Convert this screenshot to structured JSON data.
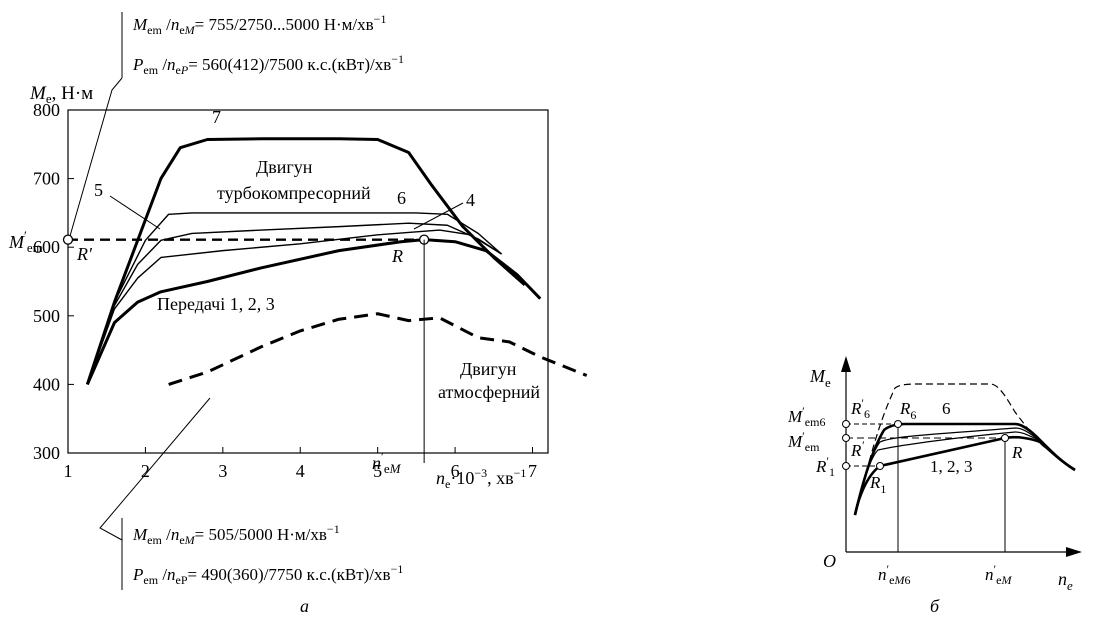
{
  "chart_data": [
    {
      "panel": "а",
      "type": "line",
      "xlim": [
        1,
        7.2
      ],
      "ylim": [
        300,
        800
      ],
      "x_ticks": [
        1,
        2,
        3,
        4,
        5,
        6,
        7
      ],
      "y_ticks": [
        300,
        400,
        500,
        600,
        700,
        800
      ],
      "ylabel": "Me, Н·м",
      "xlabel": "ne·10⁻³, хв⁻¹",
      "mem_label": "M′em",
      "nem_label": "n′eM",
      "grid": false,
      "series": [
        {
          "name": "7",
          "style": "bold",
          "x": [
            1.25,
            1.6,
            2.2,
            2.45,
            2.8,
            3.5,
            4.5,
            5.0,
            5.4,
            5.7,
            6.1,
            6.5,
            6.9
          ],
          "y": [
            400,
            520,
            700,
            745,
            757,
            758,
            758,
            757,
            738,
            690,
            630,
            585,
            545
          ]
        },
        {
          "name": "6",
          "x": [
            1.25,
            1.6,
            2.0,
            2.3,
            2.6,
            3.5,
            4.5,
            5.5,
            5.9,
            6.3,
            6.6
          ],
          "y": [
            400,
            520,
            610,
            648,
            650,
            650,
            650,
            650,
            648,
            620,
            590
          ]
        },
        {
          "name": "5",
          "x": [
            1.25,
            1.6,
            1.9,
            2.2,
            2.6,
            3.5,
            4.5,
            5.4,
            5.9,
            6.3,
            6.6
          ],
          "y": [
            400,
            515,
            575,
            610,
            620,
            625,
            630,
            635,
            632,
            612,
            590
          ]
        },
        {
          "name": "4",
          "x": [
            1.25,
            1.6,
            1.9,
            2.2,
            3.0,
            4.0,
            5.0,
            5.8,
            6.2,
            6.6
          ],
          "y": [
            400,
            510,
            555,
            585,
            595,
            605,
            618,
            625,
            618,
            590
          ]
        },
        {
          "name": "Передачі 1, 2, 3",
          "style": "bold",
          "x": [
            1.25,
            1.6,
            1.9,
            2.2,
            2.8,
            3.5,
            4.5,
            5.3,
            5.6,
            6.0,
            6.4,
            6.8,
            7.1
          ],
          "y": [
            400,
            490,
            520,
            535,
            550,
            570,
            595,
            608,
            611,
            608,
            595,
            560,
            525
          ]
        },
        {
          "name": "Двигун атмосферний",
          "style": "dashed-bold",
          "x": [
            2.3,
            2.8,
            3.5,
            4.0,
            4.5,
            5.0,
            5.4,
            5.8,
            6.3,
            6.7,
            7.1,
            7.7
          ],
          "y": [
            400,
            418,
            455,
            478,
            495,
            503,
            493,
            497,
            468,
            462,
            440,
            413
          ]
        }
      ],
      "annotations": {
        "turbo_label_1": "Двигун",
        "turbo_label_2": "турбокомпресорний",
        "atmo_label_1": "Двигун",
        "atmo_label_2": "атмосферний",
        "gears_label": "Передачі 1, 2, 3",
        "curve7": "7",
        "curve6": "6",
        "curve5": "5",
        "curve4": "4",
        "point_R": "R",
        "point_Rp": "R′"
      },
      "mem_value": 611,
      "nem_value": 5.6,
      "spec_top_1": "Mem/neM = 755/2750...5000 Н·м/хв⁻¹",
      "spec_top_2": "Pem/neP = 560(412)/7500 к.с.(кВт)/хв⁻¹",
      "spec_bottom_1": "Mem/neM = 505/5000 Н·м/хв⁻¹",
      "spec_bottom_2": "Pem/neP = 490(360)/7750 к.с.(кВт)/хв⁻¹"
    },
    {
      "panel": "б",
      "type": "line",
      "ylabel": "Me",
      "xlabel": "ne",
      "origin_label": "O",
      "labels": {
        "Mem6": "M′em6",
        "Mem": "M′em",
        "R1p": "R′1",
        "R6p": "R′6",
        "R6": "R6",
        "six": "6",
        "Rp": "R′",
        "R": "R",
        "R1": "R1",
        "gears": "1, 2, 3",
        "neM6": "n′eM6",
        "neM": "n′eM"
      }
    }
  ]
}
